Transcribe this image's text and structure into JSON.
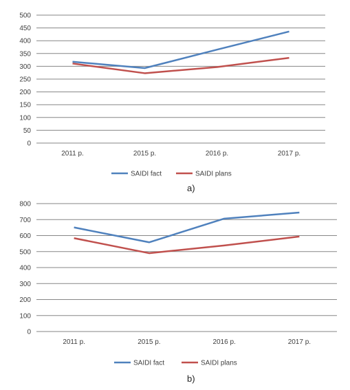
{
  "chart_data": [
    {
      "type": "line",
      "categories": [
        "2011 р.",
        "2015 р.",
        "2016 р.",
        "2017 р."
      ],
      "series": [
        {
          "name": "SAIDI fact",
          "values": [
            318,
            293,
            365,
            436
          ],
          "color": "#4f81bd"
        },
        {
          "name": "SAIDI plans",
          "values": [
            311,
            273,
            297,
            333
          ],
          "color": "#c0504d"
        }
      ],
      "ylim": [
        0,
        500
      ],
      "yticks": [
        0,
        50,
        100,
        150,
        200,
        250,
        300,
        350,
        400,
        450,
        500
      ],
      "grid": true,
      "legend": "bottom",
      "caption": "a)"
    },
    {
      "type": "line",
      "categories": [
        "2011 р.",
        "2015 р.",
        "2016 р.",
        "2017 р."
      ],
      "series": [
        {
          "name": "SAIDI fact",
          "values": [
            651,
            558,
            706,
            744
          ],
          "color": "#4f81bd"
        },
        {
          "name": "SAIDI plans",
          "values": [
            584,
            490,
            538,
            594
          ],
          "color": "#c0504d"
        }
      ],
      "ylim": [
        0,
        800
      ],
      "yticks": [
        0,
        100,
        200,
        300,
        400,
        500,
        600,
        700,
        800
      ],
      "grid": true,
      "legend": "bottom",
      "caption": "b)"
    }
  ]
}
